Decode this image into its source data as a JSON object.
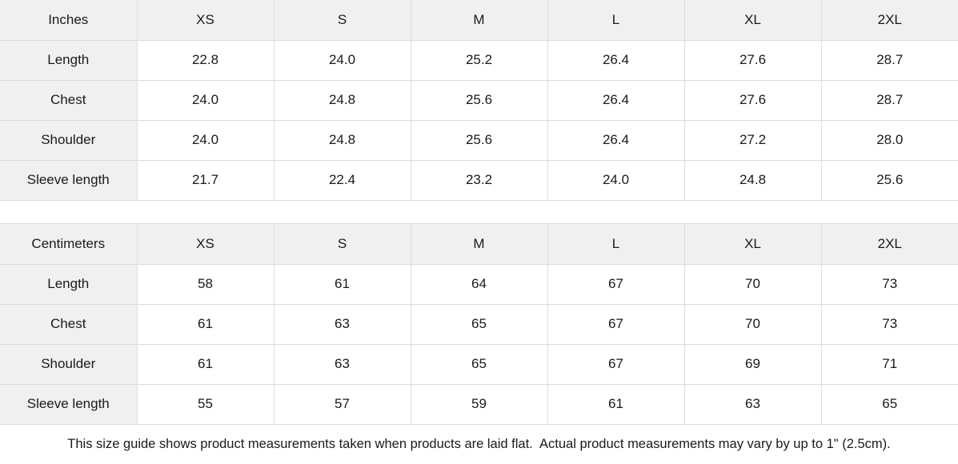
{
  "colors": {
    "header_cell_bg": "#f0f0f0",
    "body_cell_bg": "#ffffff",
    "border": "#dcdcdc",
    "text": "#1a1a1a"
  },
  "size_guide": {
    "tables": [
      {
        "unit_label": "Inches",
        "sizes": [
          "XS",
          "S",
          "M",
          "L",
          "XL",
          "2XL"
        ],
        "rows": [
          {
            "label": "Length",
            "values": [
              "22.8",
              "24.0",
              "25.2",
              "26.4",
              "27.6",
              "28.7"
            ]
          },
          {
            "label": "Chest",
            "values": [
              "24.0",
              "24.8",
              "25.6",
              "26.4",
              "27.6",
              "28.7"
            ]
          },
          {
            "label": "Shoulder",
            "values": [
              "24.0",
              "24.8",
              "25.6",
              "26.4",
              "27.2",
              "28.0"
            ]
          },
          {
            "label": "Sleeve length",
            "values": [
              "21.7",
              "22.4",
              "23.2",
              "24.0",
              "24.8",
              "25.6"
            ]
          }
        ]
      },
      {
        "unit_label": "Centimeters",
        "sizes": [
          "XS",
          "S",
          "M",
          "L",
          "XL",
          "2XL"
        ],
        "rows": [
          {
            "label": "Length",
            "values": [
              "58",
              "61",
              "64",
              "67",
              "70",
              "73"
            ]
          },
          {
            "label": "Chest",
            "values": [
              "61",
              "63",
              "65",
              "67",
              "70",
              "73"
            ]
          },
          {
            "label": "Shoulder",
            "values": [
              "61",
              "63",
              "65",
              "67",
              "69",
              "71"
            ]
          },
          {
            "label": "Sleeve length",
            "values": [
              "55",
              "57",
              "59",
              "61",
              "63",
              "65"
            ]
          }
        ]
      }
    ],
    "footer_note": "This size guide shows product measurements taken when products are laid flat.  Actual product measurements may vary by up to 1\" (2.5cm)."
  }
}
